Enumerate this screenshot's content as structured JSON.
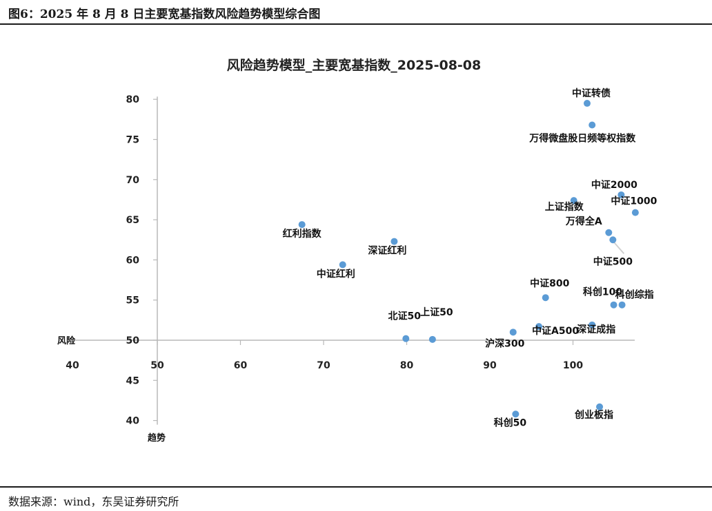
{
  "figure": {
    "title": "图6：2025 年 8 月 8 日主要宽基指数风险趋势模型综合图",
    "source": "数据来源：wind，东吴证券研究所"
  },
  "chart_data": {
    "type": "scatter",
    "title": "风险趋势模型_主要宽基指数_2025-08-08",
    "xlabel": "风险",
    "ylabel": "趋势",
    "x_ticks": [
      40,
      50,
      60,
      70,
      80,
      90,
      100
    ],
    "y_ticks": [
      40,
      45,
      50,
      55,
      60,
      65,
      70,
      75,
      80
    ],
    "xlim": [
      40,
      110
    ],
    "ylim": [
      40,
      80
    ],
    "axis_cross": {
      "x": 50,
      "y": 50
    },
    "grid": false,
    "point_color": "#5b9bd5",
    "points": [
      {
        "name": "中证转债",
        "x": 101.7,
        "y": 79.5
      },
      {
        "name": "万得微盘股日频等权指数",
        "x": 102.3,
        "y": 76.8
      },
      {
        "name": "中证2000",
        "x": 105.8,
        "y": 68.1
      },
      {
        "name": "中证1000",
        "x": 107.5,
        "y": 65.9
      },
      {
        "name": "上证指数",
        "x": 100.1,
        "y": 67.4
      },
      {
        "name": "万得全A",
        "x": 104.3,
        "y": 63.4
      },
      {
        "name": "中证500",
        "x": 104.8,
        "y": 62.5
      },
      {
        "name": "红利指数",
        "x": 67.4,
        "y": 64.4
      },
      {
        "name": "深证红利",
        "x": 78.5,
        "y": 62.3
      },
      {
        "name": "中证红利",
        "x": 72.3,
        "y": 59.4
      },
      {
        "name": "中证800",
        "x": 96.7,
        "y": 55.3
      },
      {
        "name": "科创100",
        "x": 104.9,
        "y": 54.4
      },
      {
        "name": "科创综指",
        "x": 105.9,
        "y": 54.4
      },
      {
        "name": "北证50",
        "x": 79.9,
        "y": 50.2
      },
      {
        "name": "上证50",
        "x": 83.1,
        "y": 50.1
      },
      {
        "name": "沪深300",
        "x": 92.8,
        "y": 51.0
      },
      {
        "name": "中证A500",
        "x": 95.9,
        "y": 51.7
      },
      {
        "name": "深证成指",
        "x": 102.3,
        "y": 51.9
      },
      {
        "name": "科创50",
        "x": 93.1,
        "y": 40.8
      },
      {
        "name": "创业板指",
        "x": 103.2,
        "y": 41.7
      }
    ]
  }
}
